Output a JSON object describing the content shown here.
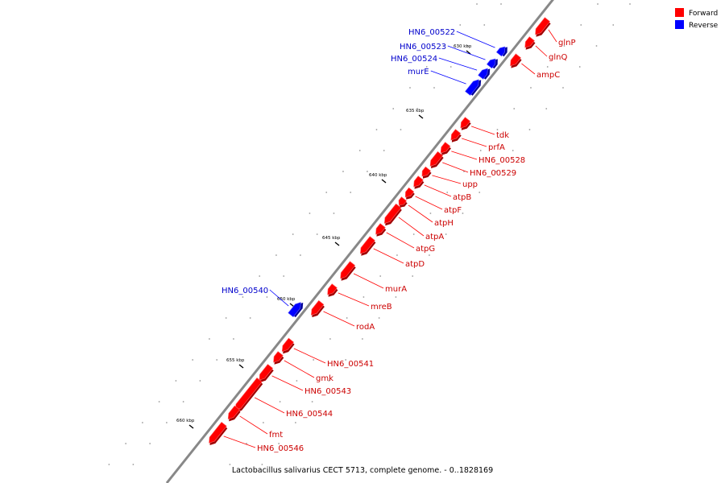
{
  "caption": "Lactobacillus salivarius CECT 5713, complete genome. - 0..1828169",
  "legend": [
    {
      "label": "Forward",
      "color": "#ff0000"
    },
    {
      "label": "Reverse",
      "color": "#0000ff"
    }
  ],
  "colors": {
    "forward": "#ff0000",
    "reverse": "#0000ff",
    "backbone": "#888888",
    "forward_label": "#cc0000",
    "reverse_label": "#0000cc"
  },
  "ticks": [
    {
      "label": "630 kbp"
    },
    {
      "label": "635 kbp"
    },
    {
      "label": "640 kbp"
    },
    {
      "label": "645 kbp"
    },
    {
      "label": "650 kbp"
    },
    {
      "label": "655 kbp"
    },
    {
      "label": "660 kbp"
    }
  ],
  "genes": [
    {
      "name": "HN6_00522",
      "strand": "reverse"
    },
    {
      "name": "HN6_00523",
      "strand": "reverse"
    },
    {
      "name": "HN6_00524",
      "strand": "reverse"
    },
    {
      "name": "murE",
      "strand": "reverse"
    },
    {
      "name": "glnP",
      "strand": "forward"
    },
    {
      "name": "glnQ",
      "strand": "forward"
    },
    {
      "name": "ampC",
      "strand": "forward"
    },
    {
      "name": "tdk",
      "strand": "forward"
    },
    {
      "name": "prfA",
      "strand": "forward"
    },
    {
      "name": "HN6_00528",
      "strand": "forward"
    },
    {
      "name": "HN6_00529",
      "strand": "forward"
    },
    {
      "name": "upp",
      "strand": "forward"
    },
    {
      "name": "atpB",
      "strand": "forward"
    },
    {
      "name": "atpF",
      "strand": "forward"
    },
    {
      "name": "atpH",
      "strand": "forward"
    },
    {
      "name": "atpA",
      "strand": "forward"
    },
    {
      "name": "atpG",
      "strand": "forward"
    },
    {
      "name": "atpD",
      "strand": "forward"
    },
    {
      "name": "murA",
      "strand": "forward"
    },
    {
      "name": "mreB",
      "strand": "forward"
    },
    {
      "name": "rodA",
      "strand": "forward"
    },
    {
      "name": "HN6_00540",
      "strand": "reverse"
    },
    {
      "name": "HN6_00541",
      "strand": "forward"
    },
    {
      "name": "gmk",
      "strand": "forward"
    },
    {
      "name": "HN6_00543",
      "strand": "forward"
    },
    {
      "name": "HN6_00544",
      "strand": "forward"
    },
    {
      "name": "fmt",
      "strand": "forward"
    },
    {
      "name": "HN6_00546",
      "strand": "forward"
    }
  ]
}
